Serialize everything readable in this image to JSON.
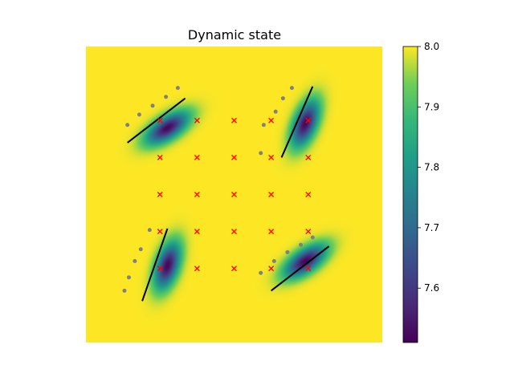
{
  "chart_data": {
    "type": "heatmap",
    "title": "Dynamic state",
    "xlabel": "",
    "ylabel": "",
    "colormap": "viridis",
    "colorbar": {
      "vmin": 7.51,
      "vmax": 8.0,
      "ticks": [
        7.6,
        7.7,
        7.8,
        7.9,
        8.0
      ],
      "tick_labels": [
        "7.6",
        "7.7",
        "7.8",
        "7.9",
        "8.0"
      ]
    },
    "background_value": 8.0,
    "grid_extent": [
      -1,
      1
    ],
    "marker_grid": {
      "symbol": "x",
      "color": "#ff0000",
      "x": [
        -0.5,
        -0.25,
        0.0,
        0.25,
        0.5
      ],
      "y": [
        -0.5,
        -0.25,
        0.0,
        0.25,
        0.5
      ]
    },
    "dips": [
      {
        "name": "upper-left",
        "center": [
          -0.45,
          0.45
        ],
        "angle_deg": 33,
        "min": 7.52,
        "bar": [
          [
            -0.72,
            0.35
          ],
          [
            -0.33,
            0.65
          ]
        ],
        "dots": [
          [
            -0.72,
            0.47
          ],
          [
            -0.64,
            0.54
          ],
          [
            -0.55,
            0.6
          ],
          [
            -0.46,
            0.66
          ],
          [
            -0.38,
            0.72
          ]
        ]
      },
      {
        "name": "upper-right",
        "center": [
          0.48,
          0.48
        ],
        "angle_deg": 68,
        "min": 7.52,
        "bar": [
          [
            0.32,
            0.25
          ],
          [
            0.53,
            0.73
          ]
        ],
        "dots": [
          [
            0.18,
            0.28
          ],
          [
            0.2,
            0.47
          ],
          [
            0.28,
            0.56
          ],
          [
            0.33,
            0.65
          ],
          [
            0.39,
            0.72
          ]
        ]
      },
      {
        "name": "lower-left",
        "center": [
          -0.45,
          -0.48
        ],
        "angle_deg": 72,
        "min": 7.52,
        "bar": [
          [
            -0.62,
            -0.72
          ],
          [
            -0.45,
            -0.23
          ]
        ],
        "dots": [
          [
            -0.74,
            -0.65
          ],
          [
            -0.71,
            -0.56
          ],
          [
            -0.67,
            -0.45
          ],
          [
            -0.63,
            -0.37
          ],
          [
            -0.57,
            -0.24
          ]
        ]
      },
      {
        "name": "lower-right",
        "center": [
          0.48,
          -0.45
        ],
        "angle_deg": 35,
        "min": 7.52,
        "bar": [
          [
            0.25,
            -0.65
          ],
          [
            0.64,
            -0.35
          ]
        ],
        "dots": [
          [
            0.18,
            -0.53
          ],
          [
            0.27,
            -0.45
          ],
          [
            0.36,
            -0.39
          ],
          [
            0.45,
            -0.34
          ],
          [
            0.53,
            -0.29
          ]
        ]
      }
    ]
  }
}
